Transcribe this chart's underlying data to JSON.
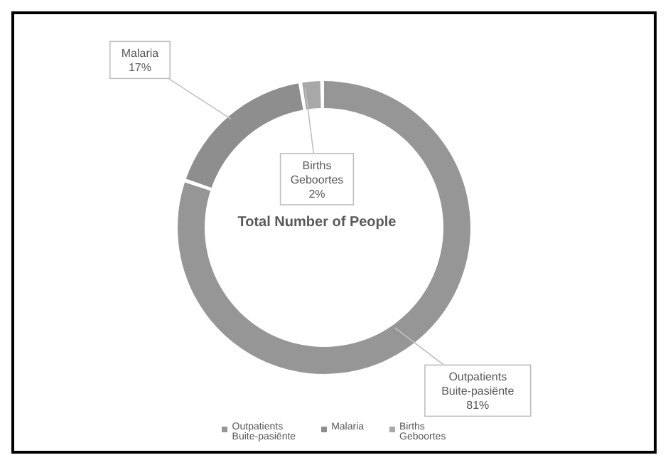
{
  "chart_data": {
    "type": "donut",
    "title": "Total Number of People",
    "categories": [
      "Outpatients Buite-pasiënte",
      "Malaria",
      "Births Geboortes"
    ],
    "values": [
      81,
      17,
      2
    ],
    "colors": [
      "#969696",
      "#8e8e8e",
      "#a8a8a8"
    ],
    "value_labels": [
      "81%",
      "17%",
      "2%"
    ],
    "legend": "bottom"
  }
}
